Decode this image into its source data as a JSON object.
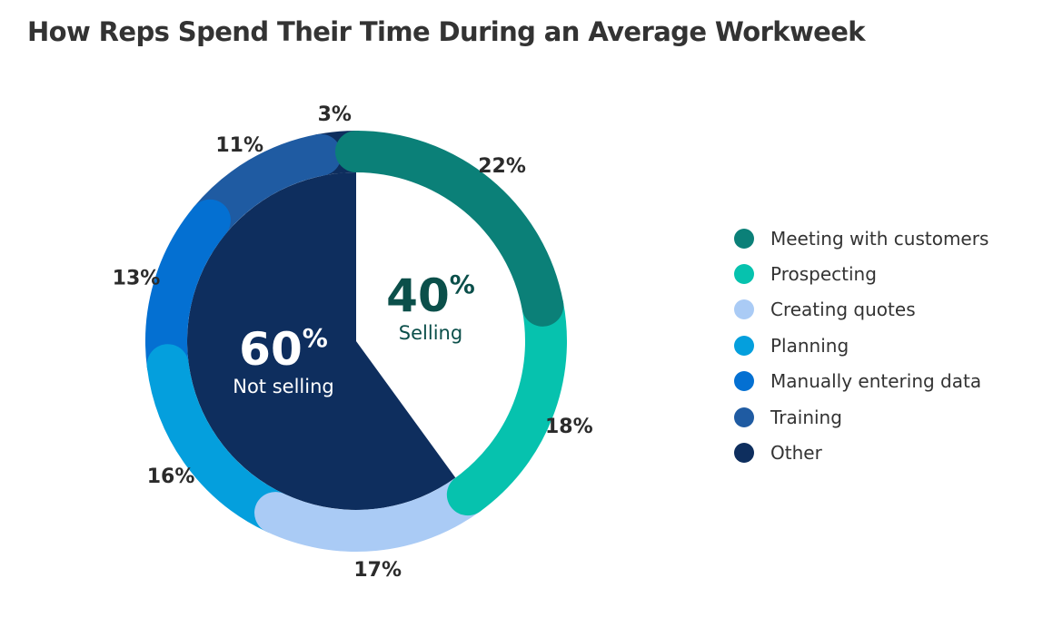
{
  "title": "How Reps Spend Their Time During an Average Workweek",
  "chart_data": {
    "type": "pie",
    "title": "How Reps Spend Their Time During an Average Workweek",
    "categories": [
      "Meeting with customers",
      "Prospecting",
      "Creating quotes",
      "Planning",
      "Manually entering data",
      "Training",
      "Other"
    ],
    "values": [
      22,
      18,
      17,
      16,
      13,
      11,
      3
    ],
    "value_labels": [
      "22%",
      "18%",
      "17%",
      "16%",
      "13%",
      "11%",
      "3%"
    ],
    "colors": [
      "#0b8078",
      "#06c2ae",
      "#aacbf5",
      "#049fdd",
      "#0470d2",
      "#1f5ba2",
      "#0e2e5e"
    ],
    "legend_placement": "right",
    "groups": [
      {
        "value": "60",
        "unit": "%",
        "label": "Not selling",
        "color": "#0e2e5e"
      },
      {
        "value": "40",
        "unit": "%",
        "label": "Selling",
        "color": "#0b4f4a"
      }
    ]
  }
}
